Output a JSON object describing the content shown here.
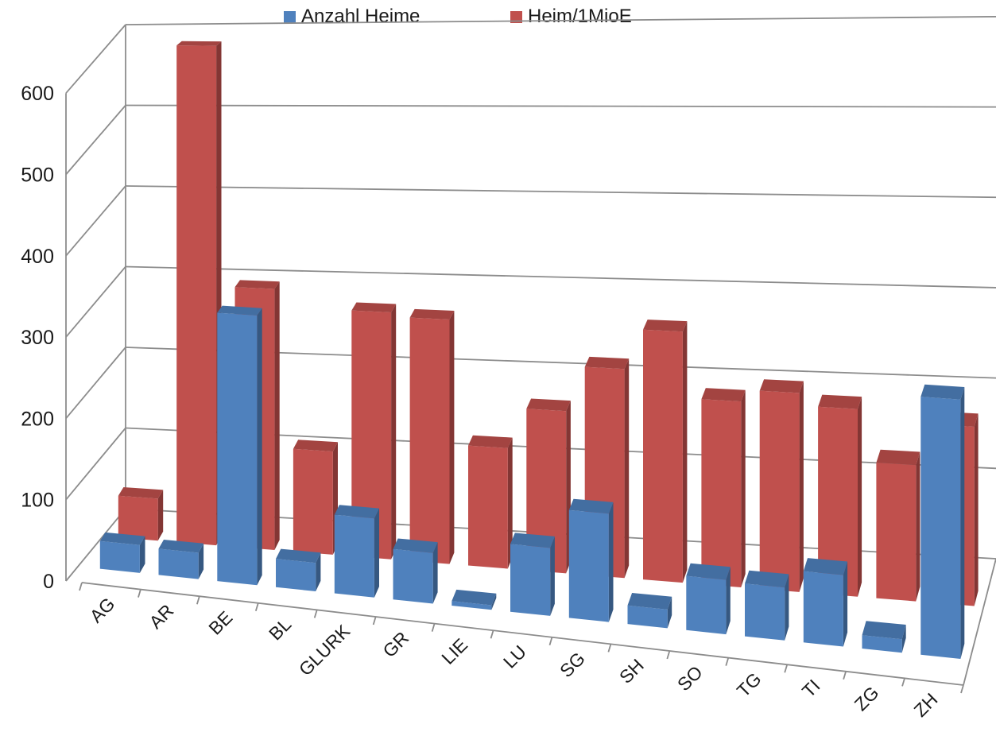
{
  "chart_data": {
    "type": "bar",
    "categories": [
      "AG",
      "AR",
      "BE",
      "BL",
      "GLURK",
      "GR",
      "LIE",
      "LU",
      "SG",
      "SH",
      "SO",
      "TG",
      "TI",
      "ZG",
      "ZH"
    ],
    "series": [
      {
        "name": "Anzahl Heime",
        "color": "#4f81bd",
        "values": [
          32,
          30,
          305,
          32,
          88,
          56,
          5,
          74,
          117,
          20,
          58,
          56,
          75,
          14,
          268
        ]
      },
      {
        "name": "Heim/1MioE",
        "color": "#c0504d",
        "values": [
          50,
          590,
          306,
          120,
          285,
          280,
          137,
          183,
          234,
          279,
          205,
          218,
          204,
          147,
          192
        ]
      }
    ],
    "yticks": [
      "0",
      "100",
      "200",
      "300",
      "400",
      "500",
      "600"
    ],
    "ylim": [
      0,
      600
    ],
    "grid": true,
    "legend_position": "top"
  }
}
